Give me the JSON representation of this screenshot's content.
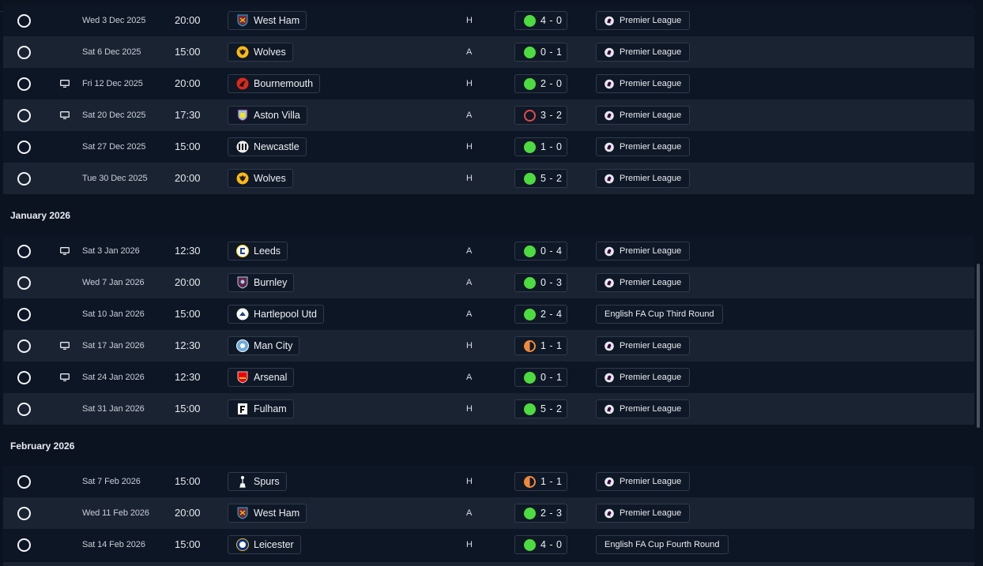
{
  "fixtures": [
    {
      "date": "Wed 3 Dec 2025",
      "time": "20:00",
      "opponent": "West Ham",
      "crest": "west-ham-crest",
      "venue": "H",
      "outcome": "win",
      "score": "4 - 0",
      "competition": "Premier League",
      "tv": false
    },
    {
      "date": "Sat 6 Dec 2025",
      "time": "15:00",
      "opponent": "Wolves",
      "crest": "wolves-crest",
      "venue": "A",
      "outcome": "win",
      "score": "0 - 1",
      "competition": "Premier League",
      "tv": false
    },
    {
      "date": "Fri 12 Dec 2025",
      "time": "20:00",
      "opponent": "Bournemouth",
      "crest": "bournemouth-crest",
      "venue": "H",
      "outcome": "win",
      "score": "2 - 0",
      "competition": "Premier League",
      "tv": true
    },
    {
      "date": "Sat 20 Dec 2025",
      "time": "17:30",
      "opponent": "Aston Villa",
      "crest": "aston-villa-crest",
      "venue": "A",
      "outcome": "loss",
      "score": "3 - 2",
      "competition": "Premier League",
      "tv": true
    },
    {
      "date": "Sat 27 Dec 2025",
      "time": "15:00",
      "opponent": "Newcastle",
      "crest": "newcastle-crest",
      "venue": "H",
      "outcome": "win",
      "score": "1 - 0",
      "competition": "Premier League",
      "tv": false
    },
    {
      "date": "Tue 30 Dec 2025",
      "time": "20:00",
      "opponent": "Wolves",
      "crest": "wolves-crest",
      "venue": "H",
      "outcome": "win",
      "score": "5 - 2",
      "competition": "Premier League",
      "tv": false
    }
  ],
  "months": [
    {
      "title": "January 2026",
      "fixtures": [
        {
          "date": "Sat 3 Jan 2026",
          "time": "12:30",
          "opponent": "Leeds",
          "crest": "leeds-crest",
          "venue": "A",
          "outcome": "win",
          "score": "0 - 4",
          "competition": "Premier League",
          "tv": true
        },
        {
          "date": "Wed 7 Jan 2026",
          "time": "20:00",
          "opponent": "Burnley",
          "crest": "burnley-crest",
          "venue": "A",
          "outcome": "win",
          "score": "0 - 3",
          "competition": "Premier League",
          "tv": false
        },
        {
          "date": "Sat 10 Jan 2026",
          "time": "15:00",
          "opponent": "Hartlepool Utd",
          "crest": "hartlepool-crest",
          "venue": "A",
          "outcome": "win",
          "score": "2 - 4",
          "competition": "English FA Cup Third Round",
          "tv": false
        },
        {
          "date": "Sat 17 Jan 2026",
          "time": "12:30",
          "opponent": "Man City",
          "crest": "man-city-crest",
          "venue": "H",
          "outcome": "draw",
          "score": "1 - 1",
          "competition": "Premier League",
          "tv": true
        },
        {
          "date": "Sat 24 Jan 2026",
          "time": "12:30",
          "opponent": "Arsenal",
          "crest": "arsenal-crest",
          "venue": "A",
          "outcome": "win",
          "score": "0 - 1",
          "competition": "Premier League",
          "tv": true
        },
        {
          "date": "Sat 31 Jan 2026",
          "time": "15:00",
          "opponent": "Fulham",
          "crest": "fulham-crest",
          "venue": "H",
          "outcome": "win",
          "score": "5 - 2",
          "competition": "Premier League",
          "tv": false
        }
      ]
    },
    {
      "title": "February 2026",
      "fixtures": [
        {
          "date": "Sat 7 Feb 2026",
          "time": "15:00",
          "opponent": "Spurs",
          "crest": "spurs-crest",
          "venue": "H",
          "outcome": "draw",
          "score": "1 - 1",
          "competition": "Premier League",
          "tv": false
        },
        {
          "date": "Wed 11 Feb 2026",
          "time": "20:00",
          "opponent": "West Ham",
          "crest": "west-ham-crest",
          "venue": "A",
          "outcome": "win",
          "score": "2 - 3",
          "competition": "Premier League",
          "tv": false
        },
        {
          "date": "Sat 14 Feb 2026",
          "time": "15:00",
          "opponent": "Leicester",
          "crest": "leicester-crest",
          "venue": "H",
          "outcome": "win",
          "score": "4 - 0",
          "competition": "English FA Cup Fourth Round",
          "tv": false
        }
      ]
    }
  ],
  "colors": {
    "win": "#4ddc3f",
    "loss": "#e24b4b",
    "draw": "#f08a3a",
    "background": "#0b1320",
    "row_alt": "#1a2331"
  }
}
